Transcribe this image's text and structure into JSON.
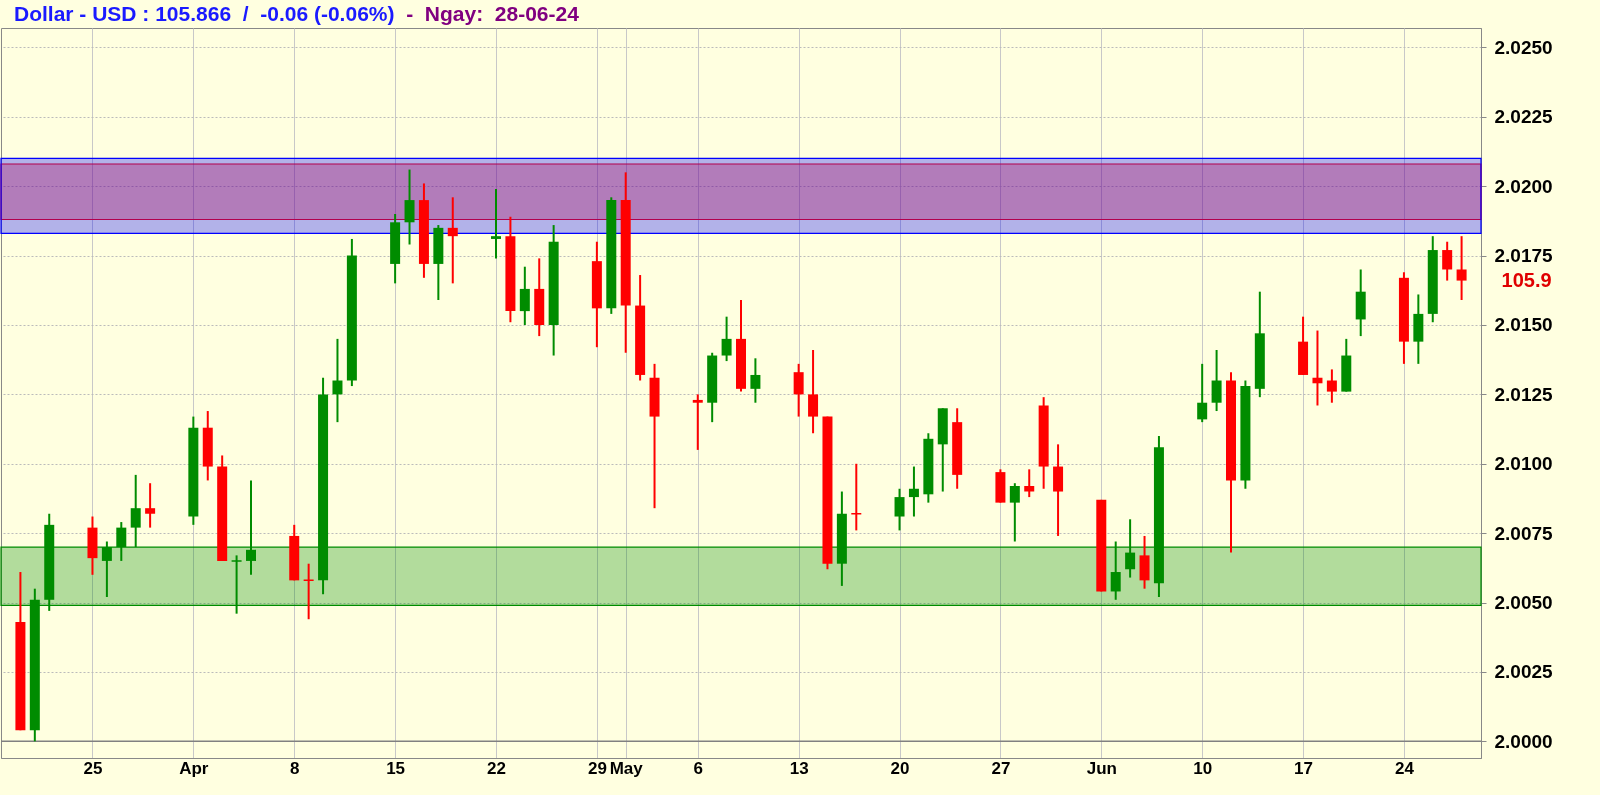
{
  "chart_data": {
    "type": "candlestick",
    "title": "Dollar - USD : 105.866  /  -0.06 (-0.06%)",
    "subtitle": "-  Ngay:  28-06-24",
    "x": [
      "--03-20",
      "--03-21",
      "--03-22",
      "--03-25",
      "--03-26",
      "--03-27",
      "--03-28",
      "--03-29",
      "--04-01",
      "--04-02",
      "--04-03",
      "--04-04",
      "--04-05",
      "--04-08",
      "--04-09",
      "--04-10",
      "--04-11",
      "--04-12",
      "--04-15",
      "--04-16",
      "--04-17",
      "--04-18",
      "--04-19",
      "--04-22",
      "--04-23",
      "--04-24",
      "--04-25",
      "--04-26",
      "--04-29",
      "--04-30",
      "--05-01",
      "--05-02",
      "--05-03",
      "--05-06",
      "--05-07",
      "--05-08",
      "--05-09",
      "--05-10",
      "--05-13",
      "--05-14",
      "--05-15",
      "--05-16",
      "--05-17",
      "--05-20",
      "--05-21",
      "--05-22",
      "--05-23",
      "--05-24",
      "--05-27",
      "--05-28",
      "--05-29",
      "--05-30",
      "--05-31",
      "--06-03",
      "--06-04",
      "--06-05",
      "--06-06",
      "--06-07",
      "--06-10",
      "--06-11",
      "--06-12",
      "--06-13",
      "--06-14",
      "--06-17",
      "--06-18",
      "--06-19",
      "--06-20",
      "--06-21",
      "--06-24",
      "--06-25",
      "--06-26",
      "--06-27",
      "--06-28"
    ],
    "xlim": [
      "--03-19",
      "--06-29"
    ],
    "xticks": [
      {
        "value": "--03-25",
        "label": "25"
      },
      {
        "value": "--04-01",
        "label": "Apr"
      },
      {
        "value": "--04-08",
        "label": "8"
      },
      {
        "value": "--04-15",
        "label": "15"
      },
      {
        "value": "--04-22",
        "label": "22"
      },
      {
        "value": "--04-29",
        "label": "29"
      },
      {
        "value": "--05-01",
        "label": "May"
      },
      {
        "value": "--05-06",
        "label": "6"
      },
      {
        "value": "--05-13",
        "label": "13"
      },
      {
        "value": "--05-20",
        "label": "20"
      },
      {
        "value": "--05-27",
        "label": "27"
      },
      {
        "value": "--06-03",
        "label": "Jun"
      },
      {
        "value": "--06-10",
        "label": "10"
      },
      {
        "value": "--06-17",
        "label": "17"
      },
      {
        "value": "--06-24",
        "label": "24"
      }
    ],
    "ohlc": [
      [
        2.0043,
        2.0061,
        2.0004,
        2.0004
      ],
      [
        2.0004,
        2.0055,
        2.0,
        2.0051
      ],
      [
        2.0051,
        2.0082,
        2.0047,
        2.0078
      ],
      [
        2.0077,
        2.0081,
        2.006,
        2.0066
      ],
      [
        2.0065,
        2.0072,
        2.0052,
        2.007
      ],
      [
        2.007,
        2.0079,
        2.0065,
        2.0077
      ],
      [
        2.0077,
        2.0096,
        2.007,
        2.0084
      ],
      [
        2.0084,
        2.0093,
        2.0077,
        2.0082
      ],
      [
        2.0081,
        2.0117,
        2.0078,
        2.0113
      ],
      [
        2.0113,
        2.0119,
        2.0094,
        2.0099
      ],
      [
        2.0099,
        2.0103,
        2.0065,
        2.0065
      ],
      [
        2.0065,
        2.0067,
        2.0046,
        2.0065
      ],
      [
        2.0065,
        2.0094,
        2.006,
        2.0069
      ],
      [
        2.0074,
        2.0078,
        2.0058,
        2.0058
      ],
      [
        2.0058,
        2.0064,
        2.0044,
        2.0058
      ],
      [
        2.0058,
        2.0131,
        2.0053,
        2.0125
      ],
      [
        2.0125,
        2.0145,
        2.0115,
        2.013
      ],
      [
        2.013,
        2.0181,
        2.0128,
        2.0175
      ],
      [
        2.0172,
        2.019,
        2.0165,
        2.0187
      ],
      [
        2.0187,
        2.0206,
        2.0179,
        2.0195
      ],
      [
        2.0195,
        2.0201,
        2.0167,
        2.0172
      ],
      [
        2.0172,
        2.0186,
        2.0159,
        2.0185
      ],
      [
        2.0185,
        2.0196,
        2.0165,
        2.0182
      ],
      [
        2.0181,
        2.0199,
        2.0174,
        2.0182
      ],
      [
        2.0182,
        2.0189,
        2.0151,
        2.0155
      ],
      [
        2.0155,
        2.0171,
        2.015,
        2.0163
      ],
      [
        2.0163,
        2.0174,
        2.0146,
        2.015
      ],
      [
        2.015,
        2.0186,
        2.0139,
        2.018
      ],
      [
        2.0173,
        2.018,
        2.0142,
        2.0156
      ],
      [
        2.0156,
        2.0196,
        2.0154,
        2.0195
      ],
      [
        2.0195,
        2.0205,
        2.014,
        2.0157
      ],
      [
        2.0157,
        2.0168,
        2.013,
        2.0132
      ],
      [
        2.0131,
        2.0136,
        2.0084,
        2.0117
      ],
      [
        2.0123,
        2.0125,
        2.0105,
        2.0122
      ],
      [
        2.0122,
        2.014,
        2.0115,
        2.0139
      ],
      [
        2.0139,
        2.0153,
        2.0137,
        2.0145
      ],
      [
        2.0145,
        2.0159,
        2.0126,
        2.0127
      ],
      [
        2.0127,
        2.0138,
        2.0122,
        2.0132
      ],
      [
        2.0133,
        2.0136,
        2.0117,
        2.0125
      ],
      [
        2.0125,
        2.0141,
        2.0111,
        2.0117
      ],
      [
        2.0117,
        2.0117,
        2.0062,
        2.0064
      ],
      [
        2.0064,
        2.009,
        2.0056,
        2.0082
      ],
      [
        2.0082,
        2.01,
        2.0076,
        2.0082
      ],
      [
        2.0081,
        2.0091,
        2.0076,
        2.0088
      ],
      [
        2.0088,
        2.0099,
        2.0081,
        2.0091
      ],
      [
        2.0089,
        2.0111,
        2.0086,
        2.0109
      ],
      [
        2.0107,
        2.012,
        2.009,
        2.012
      ],
      [
        2.0115,
        2.012,
        2.0091,
        2.0096
      ],
      [
        2.0097,
        2.0098,
        2.0086,
        2.0086
      ],
      [
        2.0086,
        2.0093,
        2.0072,
        2.0092
      ],
      [
        2.0092,
        2.0098,
        2.0088,
        2.009
      ],
      [
        2.0121,
        2.0124,
        2.0091,
        2.0099
      ],
      [
        2.0099,
        2.0107,
        2.0074,
        2.009
      ],
      [
        2.0087,
        2.0087,
        2.0054,
        2.0054
      ],
      [
        2.0054,
        2.0072,
        2.0051,
        2.0061
      ],
      [
        2.0062,
        2.008,
        2.0059,
        2.0068
      ],
      [
        2.0067,
        2.0074,
        2.0055,
        2.0058
      ],
      [
        2.0057,
        2.011,
        2.0052,
        2.0106
      ],
      [
        2.0116,
        2.0136,
        2.0115,
        2.0122
      ],
      [
        2.0122,
        2.0141,
        2.0119,
        2.013
      ],
      [
        2.013,
        2.0133,
        2.0068,
        2.0094
      ],
      [
        2.0094,
        2.013,
        2.0091,
        2.0128
      ],
      [
        2.0127,
        2.0162,
        2.0124,
        2.0147
      ],
      [
        2.0144,
        2.0153,
        2.0132,
        2.0132
      ],
      [
        2.0131,
        2.0148,
        2.0121,
        2.0129
      ],
      [
        2.013,
        2.0134,
        2.0122,
        2.0126
      ],
      [
        2.0126,
        2.0145,
        2.0126,
        2.0139
      ],
      [
        2.0152,
        2.017,
        2.0146,
        2.0162
      ],
      [
        2.0167,
        2.0169,
        2.0136,
        2.0144
      ],
      [
        2.0144,
        2.0161,
        2.0136,
        2.0154
      ],
      [
        2.0154,
        2.0182,
        2.0151,
        2.0177
      ],
      [
        2.0177,
        2.018,
        2.0166,
        2.017
      ],
      [
        2.017,
        2.0182,
        2.0159,
        2.0166
      ]
    ],
    "colors": [
      "#ff0000",
      "#008c00",
      "#008c00",
      "#ff0000",
      "#008c00",
      "#008c00",
      "#008c00",
      "#ff0000",
      "#008c00",
      "#ff0000",
      "#ff0000",
      "#008c00",
      "#008c00",
      "#ff0000",
      "#ff0000",
      "#008c00",
      "#008c00",
      "#008c00",
      "#008c00",
      "#008c00",
      "#ff0000",
      "#008c00",
      "#ff0000",
      "#008c00",
      "#ff0000",
      "#008c00",
      "#ff0000",
      "#008c00",
      "#ff0000",
      "#008c00",
      "#ff0000",
      "#ff0000",
      "#ff0000",
      "#ff0000",
      "#008c00",
      "#008c00",
      "#ff0000",
      "#008c00",
      "#ff0000",
      "#ff0000",
      "#ff0000",
      "#008c00",
      "#ff0000",
      "#008c00",
      "#008c00",
      "#008c00",
      "#008c00",
      "#ff0000",
      "#ff0000",
      "#008c00",
      "#ff0000",
      "#ff0000",
      "#ff0000",
      "#ff0000",
      "#008c00",
      "#008c00",
      "#ff0000",
      "#008c00",
      "#008c00",
      "#008c00",
      "#ff0000",
      "#008c00",
      "#008c00",
      "#ff0000",
      "#ff0000",
      "#ff0000",
      "#008c00",
      "#008c00",
      "#ff0000",
      "#008c00",
      "#008c00",
      "#ff0000",
      "#ff0000"
    ],
    "ylim": [
      1.9994,
      2.0257
    ],
    "yticks": [
      {
        "value": 2.0,
        "label": "2.0000"
      },
      {
        "value": 2.0025,
        "label": "2.0025"
      },
      {
        "value": 2.005,
        "label": "2.0050"
      },
      {
        "value": 2.0075,
        "label": "2.0075"
      },
      {
        "value": 2.01,
        "label": "2.0100"
      },
      {
        "value": 2.0125,
        "label": "2.0125"
      },
      {
        "value": 2.015,
        "label": "2.0150"
      },
      {
        "value": 2.0175,
        "label": "2.0175"
      },
      {
        "value": 2.02,
        "label": "2.0200"
      },
      {
        "value": 2.0225,
        "label": "2.0225"
      },
      {
        "value": 2.025,
        "label": "2.0250"
      }
    ],
    "grid": true,
    "bands": [
      {
        "axis": "y",
        "from": 2.0188,
        "to": 2.0208,
        "color": "#ff0000"
      },
      {
        "axis": "y",
        "from": 2.0049,
        "to": 2.007,
        "color": "#008c00"
      },
      {
        "axis": "y",
        "from": 2.0183,
        "to": 2.021,
        "color": "#0000ff"
      }
    ],
    "ref_lines": [
      {
        "axis": "y",
        "value": 2.0,
        "color": "#808080"
      }
    ],
    "annotations": [
      {
        "text": "105.9",
        "x": "--06-28",
        "y": 2.0166
      }
    ]
  }
}
